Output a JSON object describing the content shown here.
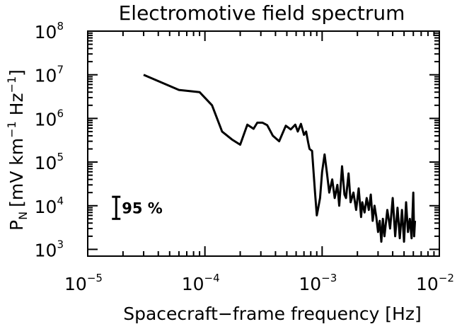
{
  "chart_data": {
    "type": "line",
    "title": "Electromotive field spectrum",
    "xlabel": "Spacecraft−frame frequency [Hz]",
    "ylabel": {
      "main": "P",
      "subscript": "N",
      "units_pre": "[mV km",
      "sup1": "−1",
      "units_mid": " Hz",
      "sup2": "−1",
      "units_post": "]"
    },
    "x_scale": "log",
    "y_scale": "log",
    "xlim": [
      1e-05,
      0.01
    ],
    "ylim": [
      700,
      100000000
    ],
    "x_ticks": [
      {
        "value": 1e-05,
        "base": "10",
        "exp": "−5"
      },
      {
        "value": 0.0001,
        "base": "10",
        "exp": "−4"
      },
      {
        "value": 0.001,
        "base": "10",
        "exp": "−3"
      },
      {
        "value": 0.01,
        "base": "10",
        "exp": "−2"
      }
    ],
    "y_ticks": [
      {
        "value": 1000,
        "base": "10",
        "exp": "3"
      },
      {
        "value": 10000,
        "base": "10",
        "exp": "4"
      },
      {
        "value": 100000,
        "base": "10",
        "exp": "5"
      },
      {
        "value": 1000000,
        "base": "10",
        "exp": "6"
      },
      {
        "value": 10000000,
        "base": "10",
        "exp": "7"
      },
      {
        "value": 100000000,
        "base": "10",
        "exp": "8"
      }
    ],
    "grid": false,
    "legend": "none",
    "annotations": [
      {
        "text": "95 %",
        "type": "error-bar",
        "x": 1.75e-05,
        "y_low": 5000,
        "y_high": 16000
      }
    ],
    "series": [
      {
        "x": [
          3e-05,
          6e-05,
          9e-05,
          0.000115,
          0.00014,
          0.00017,
          0.0002,
          0.00023,
          0.00026,
          0.00028,
          0.00031,
          0.00034,
          0.00038,
          0.00043,
          0.00049,
          0.00054,
          0.00059,
          0.00062,
          0.00066,
          0.0007,
          0.00073,
          0.00076,
          0.00078,
          0.00082,
          0.00087,
          0.0009,
          0.00092,
          0.00096,
          0.001,
          0.00105,
          0.0011,
          0.00115,
          0.00122,
          0.00128,
          0.00135,
          0.0014,
          0.00148,
          0.00155,
          0.0016,
          0.00168,
          0.00175,
          0.00185,
          0.00195,
          0.00205,
          0.00215,
          0.0022,
          0.0023,
          0.0024,
          0.0025,
          0.0026,
          0.0027,
          0.0028,
          0.0029,
          0.003,
          0.0031,
          0.0032,
          0.0033,
          0.0034,
          0.0036,
          0.0038,
          0.004,
          0.0042,
          0.0044,
          0.0046,
          0.0048,
          0.005,
          0.0052,
          0.0054,
          0.0056,
          0.0058,
          0.006,
          0.0061,
          0.0062
        ],
        "y": [
          10000000,
          4500000,
          4000000,
          2000000,
          500000,
          330000,
          250000,
          720000,
          580000,
          800000,
          800000,
          700000,
          400000,
          300000,
          680000,
          560000,
          720000,
          500000,
          750000,
          420000,
          500000,
          280000,
          200000,
          180000,
          20000,
          6000,
          8000,
          15000,
          60000,
          150000,
          55000,
          20000,
          40000,
          15000,
          30000,
          10000,
          80000,
          18000,
          15000,
          55000,
          12000,
          20000,
          8000,
          25000,
          5500,
          12000,
          7000,
          15000,
          8000,
          18000,
          4500,
          10000,
          5500,
          2500,
          4500,
          1500,
          5000,
          2000,
          8000,
          3000,
          15000,
          2000,
          9000,
          1800,
          8000,
          1500,
          12000,
          2500,
          5000,
          1800,
          20000,
          2000,
          4500
        ]
      }
    ]
  }
}
